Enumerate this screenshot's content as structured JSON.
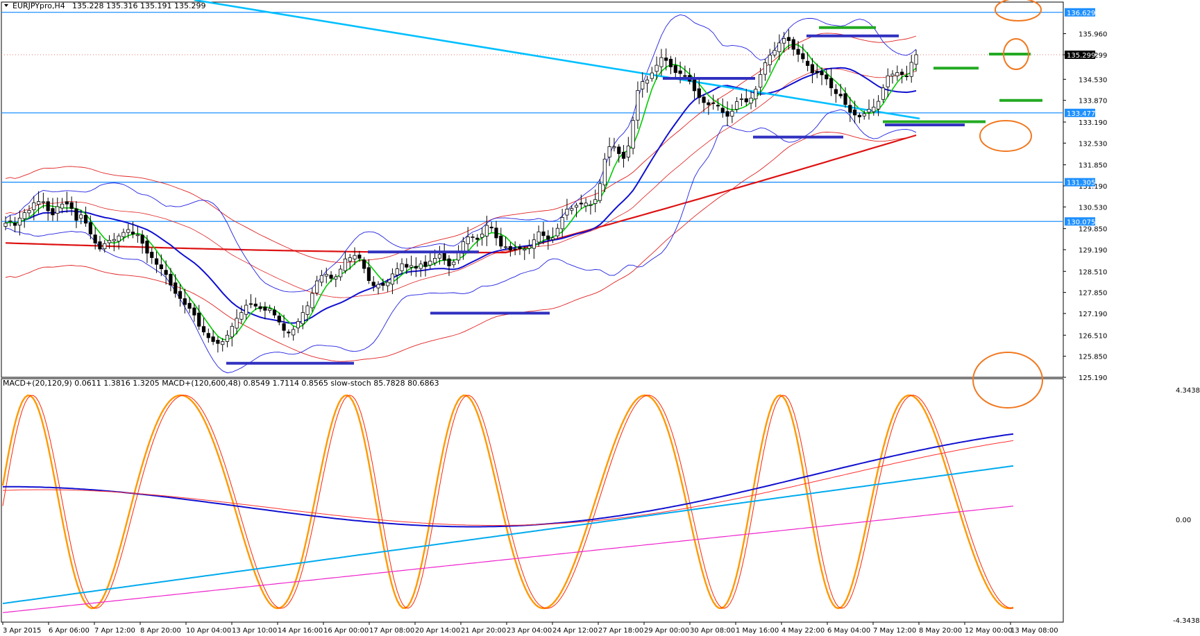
{
  "window": {
    "symbol_label": "EURJPYpro,H4",
    "ohlc_text": "135.228 135.316 135.191 135.299"
  },
  "indicator_pane": {
    "label": "MACD+(20,120,9) 0.0611 1.3816 1.3205   MACD+(120,600,48) 0.8549 1.7114 0.8565   slow-stoch 85.7828 80.6863",
    "scale_top": "4.3438",
    "scale_zero": "0.00",
    "scale_bottom": "-4.3438"
  },
  "price_axis": {
    "ticks": [
      "135.960",
      "135.299",
      "134.530",
      "133.870",
      "133.190",
      "132.530",
      "131.850",
      "131.190",
      "130.530",
      "129.850",
      "129.190",
      "128.510",
      "127.850",
      "127.190",
      "126.510",
      "125.850",
      "125.190"
    ]
  },
  "price_tags": [
    {
      "text": "136.629",
      "value": 136.629,
      "color": "#1e90ff"
    },
    {
      "text": "135.299",
      "value": 135.299,
      "color": "#000000"
    },
    {
      "text": "133.477",
      "value": 133.477,
      "color": "#1e90ff"
    },
    {
      "text": "131.305",
      "value": 131.305,
      "color": "#1e90ff"
    },
    {
      "text": "130.075",
      "value": 130.075,
      "color": "#1e90ff"
    }
  ],
  "time_axis": {
    "labels": [
      "3 Apr 2015",
      "6 Apr 06:00",
      "7 Apr 12:00",
      "8 Apr 20:00",
      "10 Apr 04:00",
      "13 Apr 10:00",
      "14 Apr 16:00",
      "16 Apr 00:00",
      "17 Apr 08:00",
      "20 Apr 14:00",
      "21 Apr 20:00",
      "23 Apr 04:00",
      "24 Apr 12:00",
      "27 Apr 18:00",
      "29 Apr 00:00",
      "30 Apr 08:00",
      "1 May 16:00",
      "4 May 22:00",
      "6 May 04:00",
      "7 May 12:00",
      "8 May 20:00",
      "12 May 00:00",
      "13 May 08:00"
    ]
  },
  "colors": {
    "hline": "#1e90ff",
    "trendline": "#00bfff",
    "bollinger": "#2020e0",
    "ma_green": "#00cc00",
    "ma_blue": "#1010d0",
    "envelope_red": "#e02020",
    "ma_red_thick": "#dd1111",
    "annotation_blue": "#3030c0",
    "annotation_green": "#22aa22",
    "circle_orange": "#f07820",
    "stoch_orange": "#ff9900",
    "stoch_red": "#ff2200",
    "macd_blue": "#1010d0",
    "macd_cyan": "#00aaee",
    "macd_magenta": "#ee22cc",
    "macd_red": "#ff3030"
  },
  "chart_data": {
    "type": "candlestick",
    "symbol": "EURJPYpro",
    "timeframe": "H4",
    "ylim": [
      125.19,
      136.95
    ],
    "horizontal_levels": [
      136.629,
      133.477,
      131.305,
      130.075
    ],
    "current_price": 135.299,
    "candles_close": [
      130.02,
      130.09,
      129.95,
      130.18,
      130.35,
      130.42,
      130.66,
      130.7,
      130.69,
      130.41,
      130.28,
      130.54,
      130.62,
      130.62,
      130.48,
      130.11,
      130.28,
      130.02,
      129.68,
      129.4,
      129.21,
      129.38,
      129.48,
      129.51,
      129.62,
      129.73,
      129.82,
      129.68,
      129.66,
      129.39,
      129.08,
      128.94,
      128.73,
      128.59,
      128.41,
      128.08,
      127.82,
      127.66,
      127.47,
      127.35,
      127.14,
      126.79,
      126.61,
      126.43,
      126.31,
      126.25,
      126.31,
      126.51,
      126.79,
      127.04,
      127.22,
      127.45,
      127.48,
      127.42,
      127.34,
      127.29,
      127.34,
      127.14,
      126.92,
      126.66,
      126.58,
      126.69,
      126.94,
      127.22,
      127.43,
      127.82,
      128.21,
      128.38,
      128.42,
      128.29,
      128.34,
      128.58,
      128.9,
      128.94,
      129.01,
      128.92,
      128.6,
      128.22,
      128.06,
      128.1,
      128.07,
      128.17,
      128.43,
      128.59,
      128.75,
      128.64,
      128.69,
      128.61,
      128.74,
      128.66,
      128.83,
      128.92,
      129.04,
      128.86,
      128.68,
      128.8,
      129.13,
      129.44,
      129.59,
      129.59,
      129.51,
      129.68,
      129.95,
      129.87,
      129.56,
      129.3,
      129.28,
      129.18,
      129.21,
      129.22,
      129.21,
      129.3,
      129.5,
      129.75,
      129.63,
      129.51,
      129.56,
      129.86,
      130.2,
      130.46,
      130.48,
      130.58,
      130.62,
      130.65,
      130.6,
      130.76,
      131.26,
      132.03,
      132.42,
      132.42,
      132.2,
      132.05,
      132.44,
      133.24,
      134.18,
      134.46,
      134.51,
      134.73,
      134.97,
      135.21,
      135.12,
      134.92,
      134.74,
      134.71,
      134.62,
      134.47,
      134.17,
      133.96,
      133.8,
      133.73,
      133.79,
      133.69,
      133.49,
      133.37,
      133.53,
      133.83,
      133.92,
      133.82,
      133.94,
      134.22,
      134.68,
      135.05,
      135.29,
      135.44,
      135.67,
      135.81,
      135.74,
      135.47,
      135.31,
      135.17,
      134.96,
      134.73,
      134.73,
      134.67,
      134.54,
      134.26,
      134.08,
      134.01,
      133.74,
      133.5,
      133.41,
      133.35,
      133.45,
      133.59,
      133.66,
      133.84,
      134.26,
      134.64,
      134.69,
      134.74,
      134.68,
      134.61,
      135.06,
      135.3
    ],
    "oscillators": {
      "scale": [
        -4.3438,
        4.3438
      ],
      "series": [
        {
          "name": "MACD+(20,120,9)",
          "values": [
            0.0611,
            1.3816,
            1.3205
          ]
        },
        {
          "name": "MACD+(120,600,48)",
          "values": [
            0.8549,
            1.7114,
            0.8565
          ]
        },
        {
          "name": "slow-stoch",
          "values": [
            85.7828,
            80.6863
          ]
        }
      ]
    }
  }
}
